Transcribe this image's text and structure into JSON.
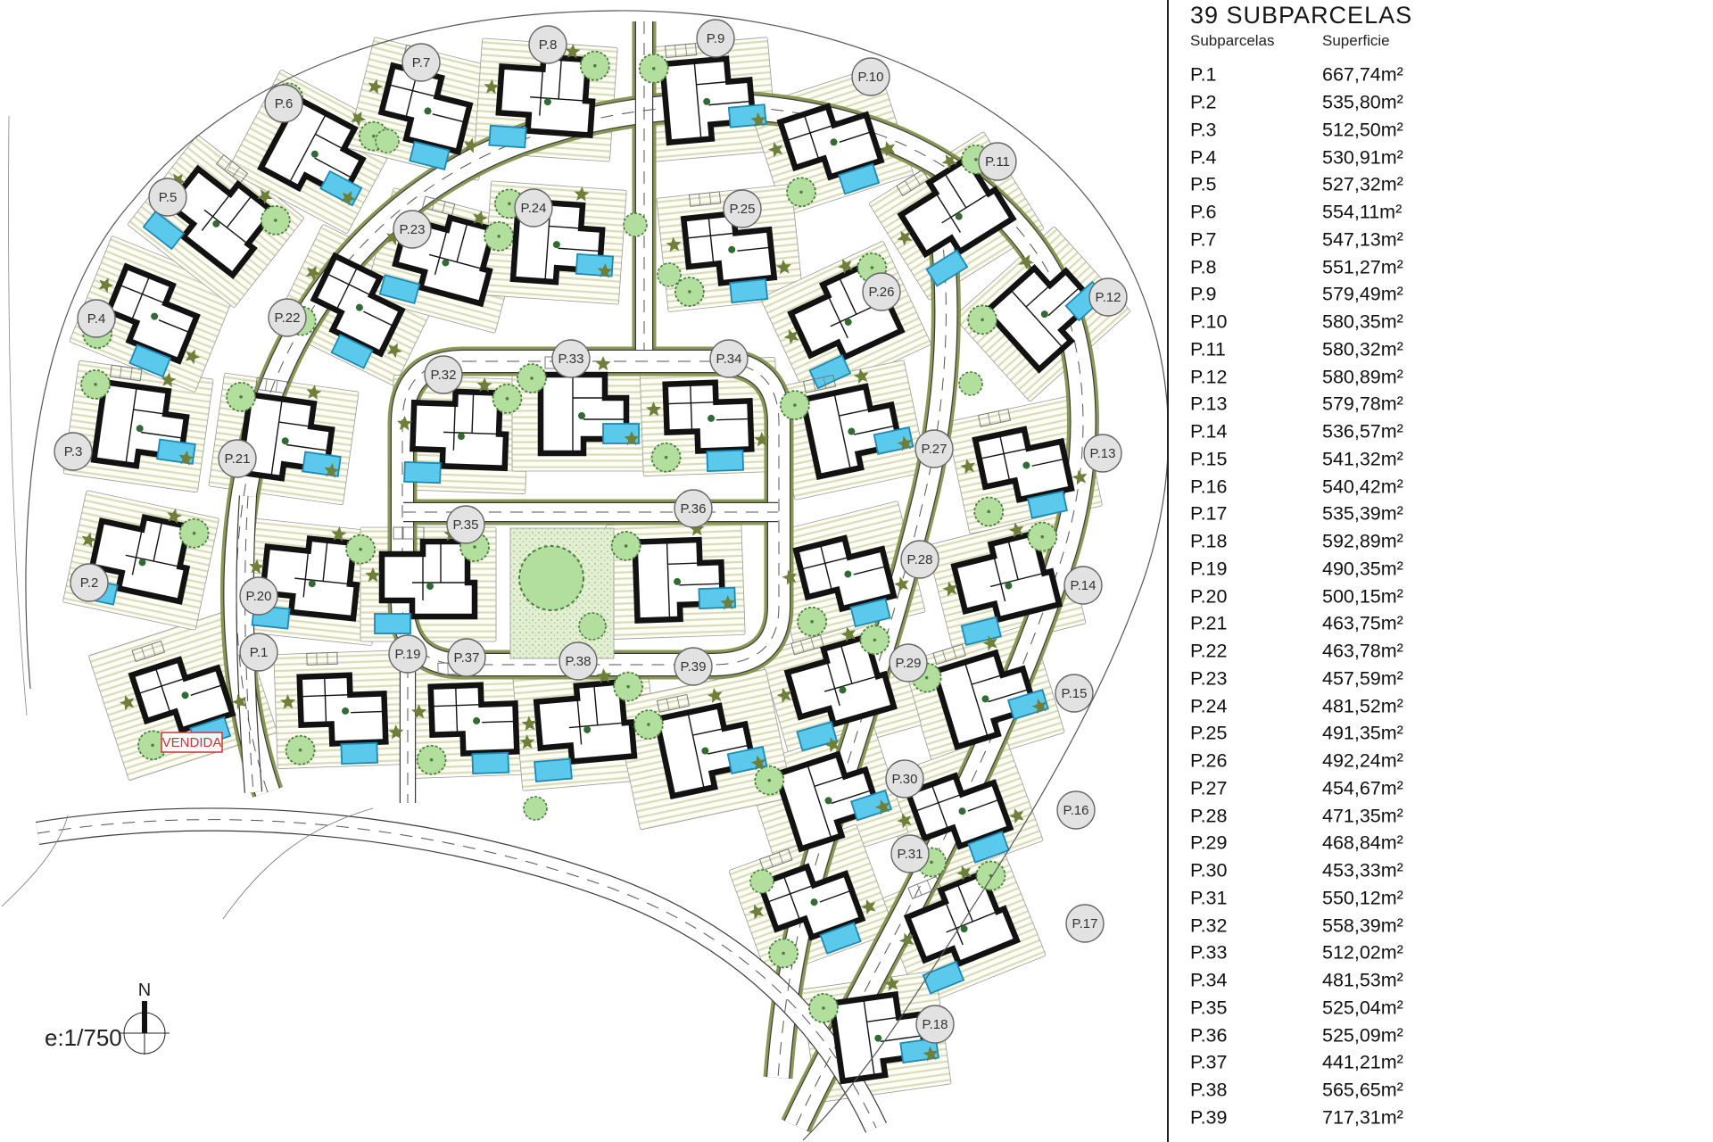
{
  "panel": {
    "title": "39 SUBPARCELAS",
    "col_subparcelas": "Subparcelas",
    "col_superficie": "Superficie",
    "rows": [
      {
        "id": "P.1",
        "area": "667,74m²"
      },
      {
        "id": "P.2",
        "area": "535,80m²"
      },
      {
        "id": "P.3",
        "area": "512,50m²"
      },
      {
        "id": "P.4",
        "area": "530,91m²"
      },
      {
        "id": "P.5",
        "area": "527,32m²"
      },
      {
        "id": "P.6",
        "area": "554,11m²"
      },
      {
        "id": "P.7",
        "area": "547,13m²"
      },
      {
        "id": "P.8",
        "area": "551,27m²"
      },
      {
        "id": "P.9",
        "area": "579,49m²"
      },
      {
        "id": "P.10",
        "area": "580,35m²"
      },
      {
        "id": "P.11",
        "area": "580,32m²"
      },
      {
        "id": "P.12",
        "area": "580,89m²"
      },
      {
        "id": "P.13",
        "area": "579,78m²"
      },
      {
        "id": "P.14",
        "area": "536,57m²"
      },
      {
        "id": "P.15",
        "area": "541,32m²"
      },
      {
        "id": "P.16",
        "area": "540,42m²"
      },
      {
        "id": "P.17",
        "area": "535,39m²"
      },
      {
        "id": "P.18",
        "area": "592,89m²"
      },
      {
        "id": "P.19",
        "area": "490,35m²"
      },
      {
        "id": "P.20",
        "area": "500,15m²"
      },
      {
        "id": "P.21",
        "area": "463,75m²"
      },
      {
        "id": "P.22",
        "area": "463,78m²"
      },
      {
        "id": "P.23",
        "area": "457,59m²"
      },
      {
        "id": "P.24",
        "area": "481,52m²"
      },
      {
        "id": "P.25",
        "area": "491,35m²"
      },
      {
        "id": "P.26",
        "area": "492,24m²"
      },
      {
        "id": "P.27",
        "area": "454,67m²"
      },
      {
        "id": "P.28",
        "area": "471,35m²"
      },
      {
        "id": "P.29",
        "area": "468,84m²"
      },
      {
        "id": "P.30",
        "area": "453,33m²"
      },
      {
        "id": "P.31",
        "area": "550,12m²"
      },
      {
        "id": "P.32",
        "area": "558,39m²"
      },
      {
        "id": "P.33",
        "area": "512,02m²"
      },
      {
        "id": "P.34",
        "area": "481,53m²"
      },
      {
        "id": "P.35",
        "area": "525,04m²"
      },
      {
        "id": "P.36",
        "area": "525,09m²"
      },
      {
        "id": "P.37",
        "area": "441,21m²"
      },
      {
        "id": "P.38",
        "area": "565,65m²"
      },
      {
        "id": "P.39",
        "area": "717,31m²"
      }
    ]
  },
  "map": {
    "scale_label": "e:1/750",
    "north_label": "N",
    "vendida_label": "VENDIDA",
    "colors": {
      "pool": "#5BC9EC",
      "pool_border": "#1E89B4",
      "tree_fill": "#B2DE9E",
      "tree_stroke": "#4C7F3C",
      "bush": "#6E7F3A",
      "hatch": "#D8DCB8",
      "verge": "#7D8D45",
      "park_fill": "#E3EFD2",
      "park_dot": "#A8C88F",
      "garden_bg": "#FDFDF6",
      "label_bg": "#E2E2E2",
      "label_stroke": "#666666",
      "road_edge": "#3A3A3A",
      "road_dash": "#555555",
      "house": "#121212",
      "boundary": "#555555",
      "vendida": "#CC3333",
      "text": "#222222"
    }
  }
}
